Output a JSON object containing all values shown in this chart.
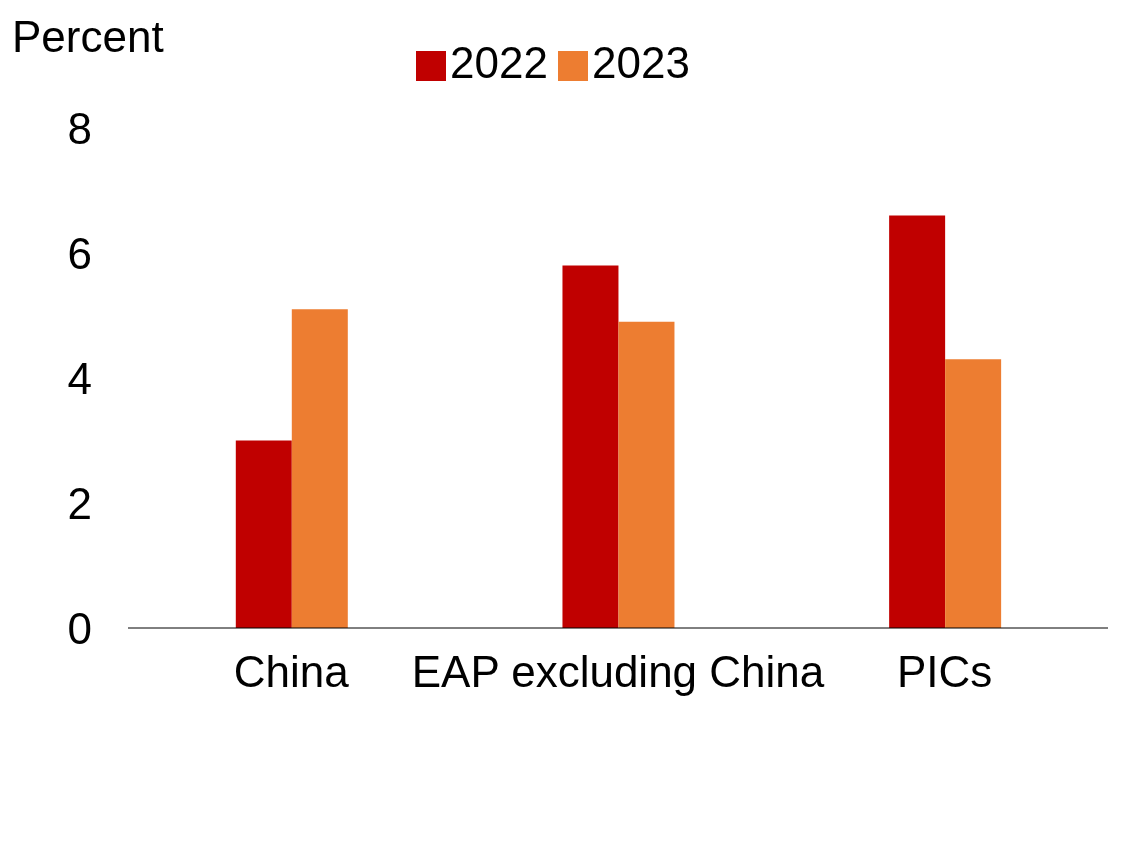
{
  "chart_data": {
    "type": "bar",
    "ylabel": "Percent",
    "categories": [
      "China",
      "EAP excluding China",
      "PICs"
    ],
    "series": [
      {
        "name": "2022",
        "color": "#c00000",
        "values": [
          3.0,
          5.8,
          6.6
        ]
      },
      {
        "name": "2023",
        "color": "#ed7d31",
        "values": [
          5.1,
          4.9,
          4.3
        ]
      }
    ],
    "ylim": [
      0,
      8
    ],
    "yticks": [
      0,
      2,
      4,
      6,
      8
    ],
    "grid": false,
    "legend": "top"
  }
}
